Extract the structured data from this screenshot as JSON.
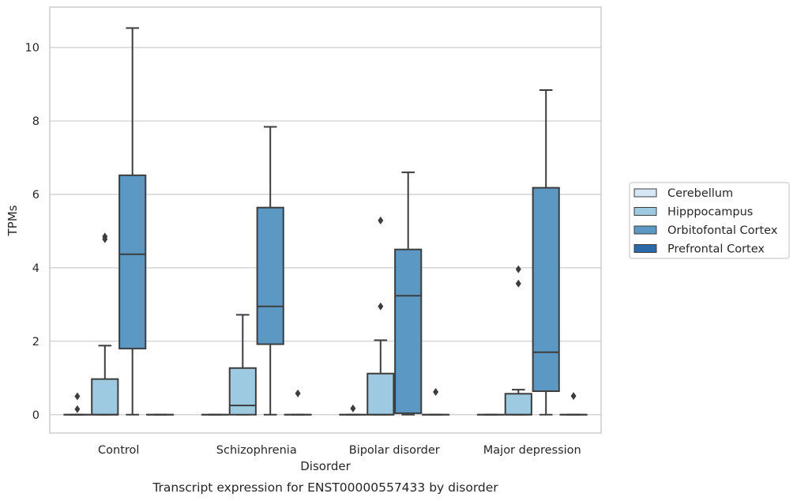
{
  "chart_data": {
    "type": "box",
    "title": "",
    "caption": "Transcript expression for ENST00000557433 by disorder",
    "xlabel": "Disorder",
    "ylabel": "TPMs",
    "categories": [
      "Control",
      "Schizophrenia",
      "Bipolar disorder",
      "Major depression"
    ],
    "ylim": [
      -0.5,
      11.1
    ],
    "yticks": [
      0,
      2,
      4,
      6,
      8,
      10
    ],
    "grid": "horizontal",
    "legend_position": "right",
    "series": [
      {
        "name": "Cerebellum",
        "color": "#d6e6f4",
        "boxes": [
          {
            "q1": 0,
            "median": 0,
            "q3": 0,
            "whisker_low": 0,
            "whisker_high": 0,
            "outliers": [
              0.15,
              0.5
            ]
          },
          {
            "q1": 0,
            "median": 0,
            "q3": 0,
            "whisker_low": 0,
            "whisker_high": 0,
            "outliers": []
          },
          {
            "q1": 0,
            "median": 0,
            "q3": 0,
            "whisker_low": 0,
            "whisker_high": 0,
            "outliers": [
              0.17
            ]
          },
          {
            "q1": 0,
            "median": 0,
            "q3": 0,
            "whisker_low": 0,
            "whisker_high": 0,
            "outliers": []
          }
        ]
      },
      {
        "name": "Hipppocampus",
        "color": "#9ecae1",
        "boxes": [
          {
            "q1": 0,
            "median": 0,
            "q3": 0.97,
            "whisker_low": 0,
            "whisker_high": 1.88,
            "outliers": [
              4.78,
              4.85
            ]
          },
          {
            "q1": 0,
            "median": 0.25,
            "q3": 1.27,
            "whisker_low": 0,
            "whisker_high": 2.72,
            "outliers": []
          },
          {
            "q1": 0,
            "median": 0,
            "q3": 1.12,
            "whisker_low": 0,
            "whisker_high": 2.03,
            "outliers": [
              2.95,
              5.29
            ]
          },
          {
            "q1": 0,
            "median": 0,
            "q3": 0.57,
            "whisker_low": 0,
            "whisker_high": 0.68,
            "outliers": [
              3.57,
              3.96
            ]
          }
        ]
      },
      {
        "name": "Orbitofontal Cortex",
        "color": "#5b98c4",
        "boxes": [
          {
            "q1": 1.8,
            "median": 4.37,
            "q3": 6.52,
            "whisker_low": 0,
            "whisker_high": 10.53,
            "outliers": []
          },
          {
            "q1": 1.92,
            "median": 2.95,
            "q3": 5.64,
            "whisker_low": 0,
            "whisker_high": 7.84,
            "outliers": []
          },
          {
            "q1": 0.04,
            "median": 3.24,
            "q3": 4.5,
            "whisker_low": 0,
            "whisker_high": 6.6,
            "outliers": []
          },
          {
            "q1": 0.64,
            "median": 1.7,
            "q3": 6.18,
            "whisker_low": 0,
            "whisker_high": 8.84,
            "outliers": []
          }
        ]
      },
      {
        "name": "Prefrontal Cortex",
        "color": "#2a6aaa",
        "boxes": [
          {
            "q1": 0,
            "median": 0,
            "q3": 0,
            "whisker_low": 0,
            "whisker_high": 0,
            "outliers": []
          },
          {
            "q1": 0,
            "median": 0,
            "q3": 0,
            "whisker_low": 0,
            "whisker_high": 0,
            "outliers": [
              0.58
            ]
          },
          {
            "q1": 0,
            "median": 0,
            "q3": 0,
            "whisker_low": 0,
            "whisker_high": 0,
            "outliers": [
              0.62
            ]
          },
          {
            "q1": 0,
            "median": 0,
            "q3": 0,
            "whisker_low": 0,
            "whisker_high": 0,
            "outliers": [
              0.51
            ]
          }
        ]
      }
    ]
  }
}
